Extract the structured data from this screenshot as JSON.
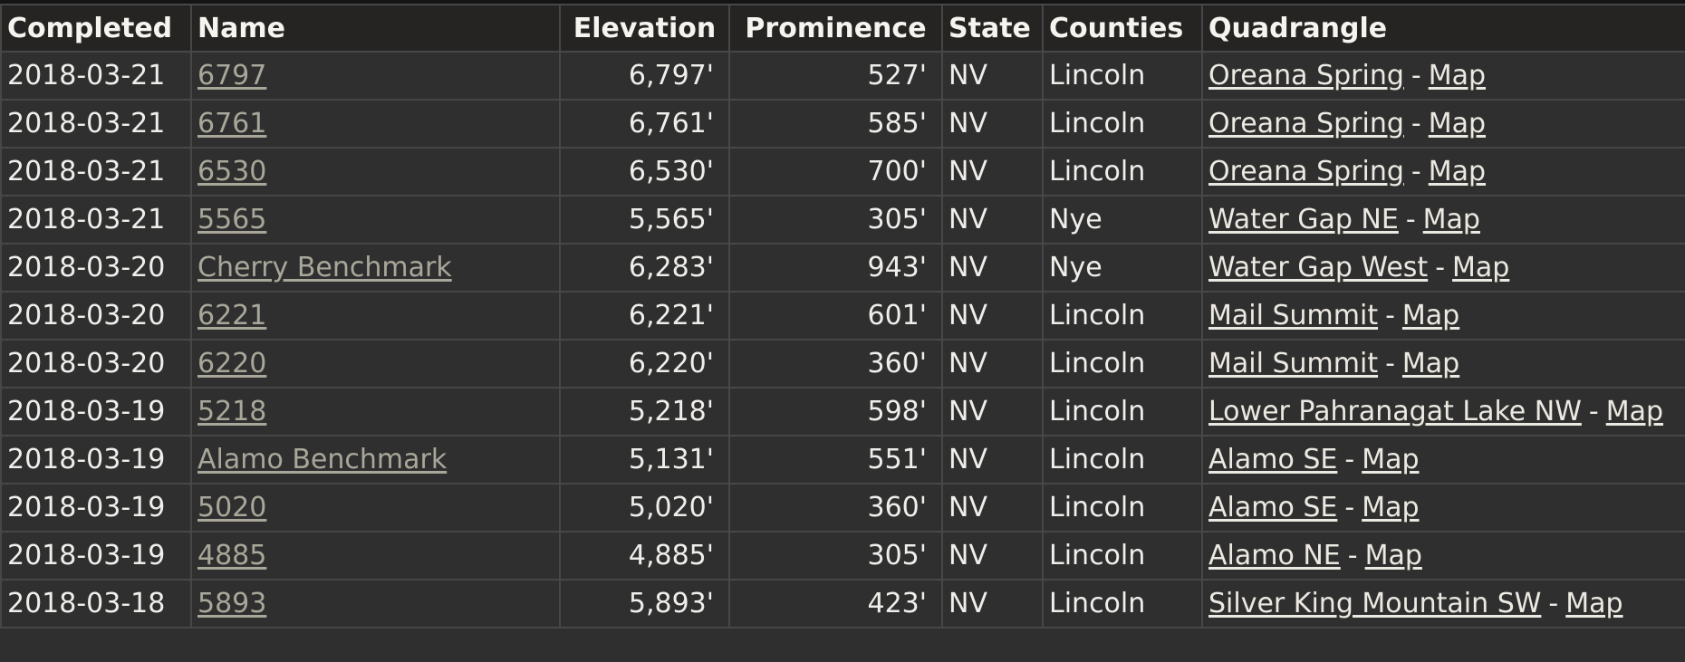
{
  "table": {
    "headers": {
      "completed": "Completed",
      "name": "Name",
      "elevation": "Elevation",
      "prominence": "Prominence",
      "state": "State",
      "counties": "Counties",
      "quadrangle": "Quadrangle"
    },
    "separator": "-",
    "rows": [
      {
        "completed": "2018-03-21",
        "name": "6797",
        "elevation": "6,797'",
        "prominence": "527'",
        "state": "NV",
        "counties": "Lincoln",
        "quad": "Oreana Spring",
        "map": "Map"
      },
      {
        "completed": "2018-03-21",
        "name": "6761",
        "elevation": "6,761'",
        "prominence": "585'",
        "state": "NV",
        "counties": "Lincoln",
        "quad": "Oreana Spring",
        "map": "Map"
      },
      {
        "completed": "2018-03-21",
        "name": "6530",
        "elevation": "6,530'",
        "prominence": "700'",
        "state": "NV",
        "counties": "Lincoln",
        "quad": "Oreana Spring",
        "map": "Map"
      },
      {
        "completed": "2018-03-21",
        "name": "5565",
        "elevation": "5,565'",
        "prominence": "305'",
        "state": "NV",
        "counties": "Nye",
        "quad": "Water Gap NE",
        "map": "Map"
      },
      {
        "completed": "2018-03-20",
        "name": "Cherry Benchmark",
        "elevation": "6,283'",
        "prominence": "943'",
        "state": "NV",
        "counties": "Nye",
        "quad": "Water Gap West",
        "map": "Map"
      },
      {
        "completed": "2018-03-20",
        "name": "6221",
        "elevation": "6,221'",
        "prominence": "601'",
        "state": "NV",
        "counties": "Lincoln",
        "quad": "Mail Summit",
        "map": "Map"
      },
      {
        "completed": "2018-03-20",
        "name": "6220",
        "elevation": "6,220'",
        "prominence": "360'",
        "state": "NV",
        "counties": "Lincoln",
        "quad": "Mail Summit",
        "map": "Map"
      },
      {
        "completed": "2018-03-19",
        "name": "5218",
        "elevation": "5,218'",
        "prominence": "598'",
        "state": "NV",
        "counties": "Lincoln",
        "quad": "Lower Pahranagat Lake NW",
        "map": "Map"
      },
      {
        "completed": "2018-03-19",
        "name": "Alamo Benchmark",
        "elevation": "5,131'",
        "prominence": "551'",
        "state": "NV",
        "counties": "Lincoln",
        "quad": "Alamo SE",
        "map": "Map"
      },
      {
        "completed": "2018-03-19",
        "name": "5020",
        "elevation": "5,020'",
        "prominence": "360'",
        "state": "NV",
        "counties": "Lincoln",
        "quad": "Alamo SE",
        "map": "Map"
      },
      {
        "completed": "2018-03-19",
        "name": "4885",
        "elevation": "4,885'",
        "prominence": "305'",
        "state": "NV",
        "counties": "Lincoln",
        "quad": "Alamo NE",
        "map": "Map"
      },
      {
        "completed": "2018-03-18",
        "name": "5893",
        "elevation": "5,893'",
        "prominence": "423'",
        "state": "NV",
        "counties": "Lincoln",
        "quad": "Silver King Mountain SW",
        "map": "Map"
      }
    ]
  },
  "colors": {
    "background": "#2f2f2f",
    "header_background": "#262423",
    "grid": "#474747",
    "peak_link": "#a9a79a",
    "quad_link": "#ece9e2"
  }
}
